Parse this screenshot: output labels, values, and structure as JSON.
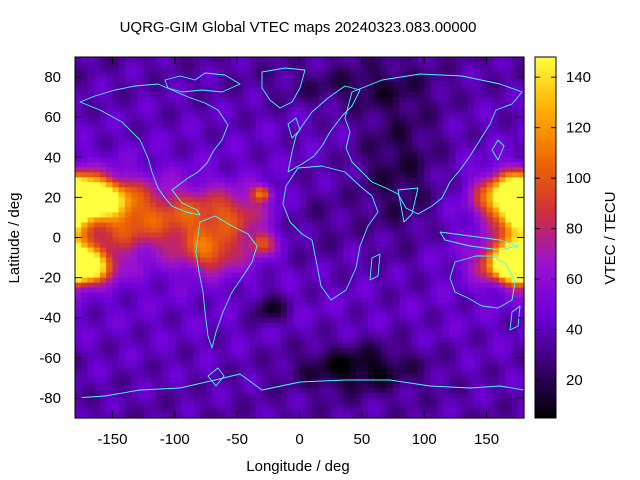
{
  "chart_data": {
    "type": "heatmap",
    "title": "UQRG-GIM Global VTEC maps 20240323.083.00000",
    "xlabel": "Longitude / deg",
    "ylabel": "Latitude / deg",
    "colorbar_label": "VTEC / TECU",
    "xlim": [
      -180,
      180
    ],
    "ylim": [
      -90,
      90
    ],
    "x_ticks": [
      -150,
      -100,
      -50,
      0,
      50,
      100,
      150
    ],
    "y_ticks": [
      -80,
      -60,
      -40,
      -20,
      0,
      20,
      40,
      60,
      80
    ],
    "colorbar_range": [
      5,
      148
    ],
    "colorbar_ticks": [
      20,
      40,
      60,
      80,
      100,
      120,
      140
    ],
    "colormap": [
      "#000000",
      "#3a0070",
      "#6e00d8",
      "#9a12d0",
      "#cf2f3a",
      "#ef6a00",
      "#ffb000",
      "#ffff40"
    ],
    "coastline_color": "#40ffff",
    "grid": false,
    "features": [
      {
        "lon": -170,
        "lat": 20,
        "vtec": 125,
        "slon": 28,
        "slat": 9
      },
      {
        "lon": -175,
        "lat": -15,
        "vtec": 135,
        "slon": 22,
        "slat": 7
      },
      {
        "lon": -140,
        "lat": 10,
        "vtec": 55,
        "slon": 40,
        "slat": 18
      },
      {
        "lon": -85,
        "lat": 10,
        "vtec": 40,
        "slon": 30,
        "slat": 15
      },
      {
        "lon": -50,
        "lat": 12,
        "vtec": 38,
        "slon": 25,
        "slat": 12
      },
      {
        "lon": -30,
        "lat": 22,
        "vtec": 60,
        "slon": 8,
        "slat": 4
      },
      {
        "lon": -70,
        "lat": -8,
        "vtec": 50,
        "slon": 25,
        "slat": 10
      },
      {
        "lon": -30,
        "lat": -3,
        "vtec": 50,
        "slon": 10,
        "slat": 6
      },
      {
        "lon": 170,
        "lat": 20,
        "vtec": 95,
        "slon": 25,
        "slat": 12
      },
      {
        "lon": 170,
        "lat": -12,
        "vtec": 100,
        "slon": 25,
        "slat": 10
      },
      {
        "lon": 175,
        "lat": 2,
        "vtec": 60,
        "slon": 12,
        "slat": 20
      },
      {
        "lon": 15,
        "lat": 5,
        "vtec": -15,
        "slon": 35,
        "slat": 25
      },
      {
        "lon": 80,
        "lat": 30,
        "vtec": -25,
        "slon": 35,
        "slat": 45
      },
      {
        "lon": 45,
        "lat": -65,
        "vtec": -32,
        "slon": 50,
        "slat": 12
      },
      {
        "lon": -25,
        "lat": -35,
        "vtec": -30,
        "slon": 14,
        "slat": 8
      },
      {
        "lon": 40,
        "lat": 75,
        "vtec": -15,
        "slon": 60,
        "slat": 10
      }
    ]
  }
}
